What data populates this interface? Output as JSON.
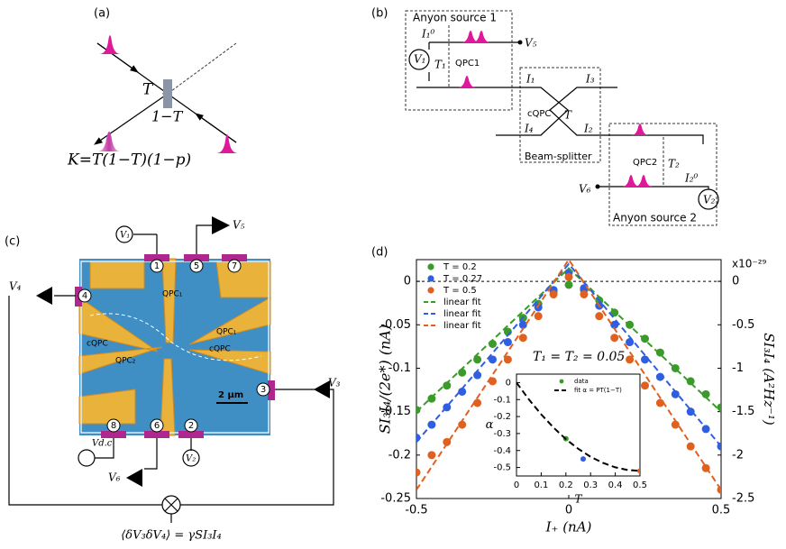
{
  "panels": {
    "a": {
      "label": "(a)",
      "T": "T",
      "one_minus_T": "1−T",
      "formula": "K=T(1−T)(1−p)"
    },
    "b": {
      "label": "(b)",
      "texts": [
        "Anyon source 1",
        "I₁⁰",
        "V₁",
        "T₁",
        "QPC1",
        "V₅",
        "I₁",
        "I₃",
        "cQPC",
        "T",
        "I₄",
        "I₂",
        "Beam-splitter",
        "QPC2",
        "T₂",
        "I₂⁰",
        "V₆",
        "V₂",
        "Anyon source 2"
      ]
    },
    "c": {
      "label": "(c)",
      "texts": [
        "V₁",
        "V₅",
        "V₄",
        "V₃",
        "1",
        "5",
        "7",
        "4",
        "3",
        "8",
        "6",
        "2",
        "QPC₁",
        "cQPC",
        "QPC₂",
        "QPC₁",
        "cQPC",
        "2 μm",
        "Vd.c",
        "V₆",
        "V₂",
        "⟨δV₃δV₄⟩ = γSI₃I₄"
      ]
    }
  },
  "chart_data": [
    {
      "type": "scatter",
      "panel_label": "(d)",
      "xlabel": "I₊ (nA)",
      "ylabel": "SI₃I₄/(2e*) (nA)",
      "y2label": "SI₃I₄ (A²Hz⁻¹)",
      "y2_exponent": "x10⁻²⁹",
      "annotation": "T₁ = T₂ = 0.05",
      "x": [
        -0.5,
        -0.45,
        -0.4,
        -0.35,
        -0.3,
        -0.25,
        -0.2,
        -0.15,
        -0.1,
        -0.05,
        0,
        0.05,
        0.1,
        0.15,
        0.2,
        0.25,
        0.3,
        0.35,
        0.4,
        0.45,
        0.5
      ],
      "series": [
        {
          "name": "T = 0.2",
          "color": "#3a9a2a",
          "values": [
            -0.148,
            -0.135,
            -0.12,
            -0.105,
            -0.09,
            -0.072,
            -0.058,
            -0.042,
            -0.026,
            -0.012,
            -0.004,
            -0.01,
            -0.022,
            -0.036,
            -0.05,
            -0.066,
            -0.082,
            -0.1,
            -0.115,
            -0.13,
            -0.145
          ]
        },
        {
          "name": "T = 0.27",
          "color": "#2f5fe0",
          "values": [
            -0.18,
            -0.165,
            -0.145,
            -0.127,
            -0.108,
            -0.09,
            -0.07,
            -0.05,
            -0.03,
            -0.01,
            0.01,
            -0.008,
            -0.028,
            -0.05,
            -0.07,
            -0.09,
            -0.11,
            -0.13,
            -0.15,
            -0.17,
            -0.19
          ]
        },
        {
          "name": "T = 0.5",
          "color": "#e06020",
          "values": [
            -0.22,
            -0.2,
            -0.185,
            -0.165,
            -0.14,
            -0.115,
            -0.09,
            -0.065,
            -0.04,
            -0.015,
            0.005,
            -0.015,
            -0.04,
            -0.065,
            -0.09,
            -0.12,
            -0.14,
            -0.165,
            -0.19,
            -0.215,
            -0.24
          ]
        },
        {
          "name": "linear fit",
          "color": "#3a9a2a",
          "dashed": true,
          "x": [
            -0.5,
            0,
            0.5
          ],
          "values": [
            -0.15,
            0.015,
            -0.15
          ]
        },
        {
          "name": "linear fit",
          "color": "#2f5fe0",
          "dashed": true,
          "x": [
            -0.5,
            0,
            0.5
          ],
          "values": [
            -0.185,
            0.02,
            -0.19
          ]
        },
        {
          "name": "linear fit",
          "color": "#e06020",
          "dashed": true,
          "x": [
            -0.5,
            0,
            0.5
          ],
          "values": [
            -0.24,
            0.025,
            -0.24
          ]
        }
      ],
      "xlim": [
        -0.5,
        0.5
      ],
      "xticks": [
        -0.5,
        0,
        0.5
      ],
      "ylim": [
        -0.25,
        0.025
      ],
      "yticks": [
        0,
        -0.05,
        -0.1,
        -0.15,
        -0.2,
        -0.25
      ],
      "y2lim": [
        -2.5,
        0.25
      ],
      "y2ticks": [
        0,
        -0.5,
        -1,
        -1.5,
        -2,
        -2.5
      ],
      "zero_line": true,
      "legend": "upper left"
    },
    {
      "type": "scatter",
      "xlabel": "T",
      "ylabel": "α",
      "series": [
        {
          "name": "data",
          "color": "#3a9a2a",
          "colors": [
            "#3a9a2a",
            "#2f5fe0",
            "#e06020"
          ],
          "x": [
            0.2,
            0.27,
            0.5
          ],
          "values": [
            -0.33,
            -0.45,
            -0.52
          ]
        },
        {
          "name": "fit α = PT(1−T)",
          "color": "#000000",
          "dashed": true,
          "x": [
            0,
            0.05,
            0.1,
            0.15,
            0.2,
            0.25,
            0.3,
            0.35,
            0.4,
            0.45,
            0.5
          ],
          "values": [
            0,
            -0.099,
            -0.187,
            -0.265,
            -0.333,
            -0.39,
            -0.437,
            -0.473,
            -0.499,
            -0.515,
            -0.52
          ]
        }
      ],
      "xlim": [
        0,
        0.5
      ],
      "xticks": [
        0,
        0.1,
        0.2,
        0.3,
        0.4,
        0.5
      ],
      "ylim": [
        -0.55,
        0.05
      ],
      "yticks": [
        0,
        -0.1,
        -0.2,
        -0.3,
        -0.4,
        -0.5
      ],
      "legend": "upper right"
    }
  ]
}
